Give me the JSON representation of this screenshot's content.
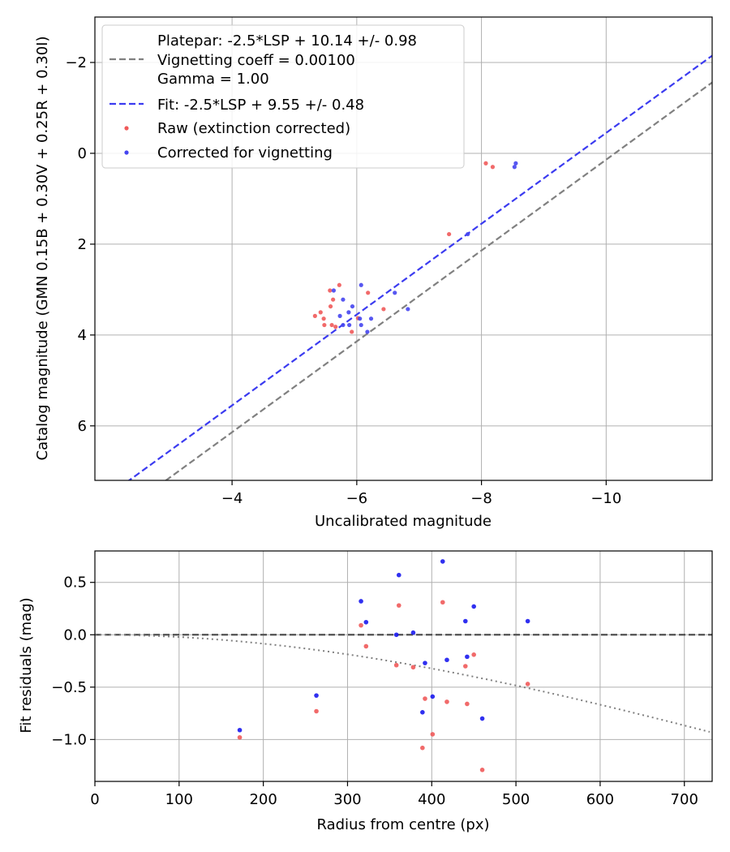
{
  "chart_data": [
    {
      "type": "scatter",
      "xlabel": "Uncalibrated magnitude",
      "ylabel": "Catalog magnitude (GMN 0.15B + 0.30V + 0.25R + 0.30I)",
      "xlim": [
        -1.8,
        -11.7
      ],
      "ylim": [
        7.2,
        -3.0
      ],
      "x_ticks": [
        -4,
        -6,
        -8,
        -10
      ],
      "x_tick_labels": [
        "−4",
        "−6",
        "−8",
        "−10"
      ],
      "y_ticks": [
        -2,
        0,
        2,
        4,
        6
      ],
      "y_tick_labels": [
        "−2",
        "0",
        "2",
        "4",
        "6"
      ],
      "grid": true,
      "legend_position": "top-left",
      "legend": {
        "platepar_lines": [
          "Platepar: -2.5*LSP + 10.14 +/- 0.98",
          "Vignetting coeff = 0.00100",
          "Gamma = 1.00"
        ],
        "fit": "Fit: -2.5*LSP + 9.55 +/- 0.48",
        "raw": "Raw (extinction corrected)",
        "corrected": "Corrected for vignetting"
      },
      "lines": [
        {
          "name": "Platepar",
          "slope": 1.0,
          "intercept": 10.14,
          "color": "#808080",
          "style": "dashed"
        },
        {
          "name": "Fit",
          "slope": 1.0,
          "intercept": 9.55,
          "color": "#3b3bf0",
          "style": "dashed"
        }
      ],
      "series": [
        {
          "name": "Raw (extinction corrected)",
          "color": "#f05a5a",
          "points": [
            [
              -8.07,
              0.22
            ],
            [
              -8.18,
              0.3
            ],
            [
              -7.48,
              1.78
            ],
            [
              -5.72,
              2.9
            ],
            [
              -5.57,
              3.02
            ],
            [
              -6.18,
              3.07
            ],
            [
              -5.62,
              3.22
            ],
            [
              -5.58,
              3.37
            ],
            [
              -5.42,
              3.5
            ],
            [
              -6.43,
              3.43
            ],
            [
              -5.33,
              3.58
            ],
            [
              -5.47,
              3.64
            ],
            [
              -6.02,
              3.63
            ],
            [
              -5.48,
              3.78
            ],
            [
              -5.6,
              3.78
            ],
            [
              -5.66,
              3.82
            ],
            [
              -5.92,
              3.93
            ]
          ]
        },
        {
          "name": "Corrected for vignetting",
          "color": "#4545f0",
          "points": [
            [
              -8.55,
              0.22
            ],
            [
              -8.53,
              0.3
            ],
            [
              -7.78,
              1.78
            ],
            [
              -6.07,
              2.9
            ],
            [
              -5.63,
              3.02
            ],
            [
              -6.61,
              3.07
            ],
            [
              -5.78,
              3.22
            ],
            [
              -5.93,
              3.37
            ],
            [
              -5.87,
              3.5
            ],
            [
              -6.82,
              3.43
            ],
            [
              -5.73,
              3.58
            ],
            [
              -6.05,
              3.64
            ],
            [
              -6.23,
              3.64
            ],
            [
              -5.78,
              3.78
            ],
            [
              -5.88,
              3.78
            ],
            [
              -6.07,
              3.78
            ],
            [
              -6.17,
              3.93
            ]
          ]
        }
      ]
    },
    {
      "type": "scatter",
      "xlabel": "Radius from centre (px)",
      "ylabel": "Fit residuals (mag)",
      "xlim": [
        0,
        733
      ],
      "ylim": [
        -1.4,
        0.8
      ],
      "x_ticks": [
        0,
        100,
        200,
        300,
        400,
        500,
        600,
        700
      ],
      "x_tick_labels": [
        "0",
        "100",
        "200",
        "300",
        "400",
        "500",
        "600",
        "700"
      ],
      "y_ticks": [
        0.5,
        0.0,
        -0.5,
        -1.0
      ],
      "y_tick_labels": [
        "0.5",
        "0.0",
        "−0.5",
        "−1.0"
      ],
      "grid": true,
      "zero_line": {
        "y": 0.0,
        "color": "#505050",
        "style": "dashed"
      },
      "vignetting_curve": {
        "coeff": 0.001,
        "color": "#808080",
        "style": "dotted"
      },
      "series": [
        {
          "name": "Raw",
          "color": "#f05a5a",
          "points": [
            [
              172,
              -0.98
            ],
            [
              263,
              -0.73
            ],
            [
              316,
              0.09
            ],
            [
              322,
              -0.11
            ],
            [
              358,
              -0.29
            ],
            [
              361,
              0.28
            ],
            [
              378,
              -0.31
            ],
            [
              389,
              -1.08
            ],
            [
              392,
              -0.61
            ],
            [
              401,
              -0.95
            ],
            [
              413,
              0.31
            ],
            [
              418,
              -0.64
            ],
            [
              440,
              -0.3
            ],
            [
              442,
              -0.66
            ],
            [
              450,
              -0.19
            ],
            [
              460,
              -1.29
            ],
            [
              514,
              -0.47
            ]
          ]
        },
        {
          "name": "Corrected",
          "color": "#1a1aee",
          "points": [
            [
              172,
              -0.91
            ],
            [
              263,
              -0.58
            ],
            [
              316,
              0.32
            ],
            [
              322,
              0.12
            ],
            [
              358,
              0.0
            ],
            [
              361,
              0.57
            ],
            [
              378,
              0.02
            ],
            [
              389,
              -0.74
            ],
            [
              392,
              -0.27
            ],
            [
              401,
              -0.59
            ],
            [
              413,
              0.7
            ],
            [
              418,
              -0.24
            ],
            [
              440,
              0.13
            ],
            [
              442,
              -0.21
            ],
            [
              450,
              0.27
            ],
            [
              460,
              -0.8
            ],
            [
              514,
              0.13
            ]
          ]
        }
      ]
    }
  ]
}
